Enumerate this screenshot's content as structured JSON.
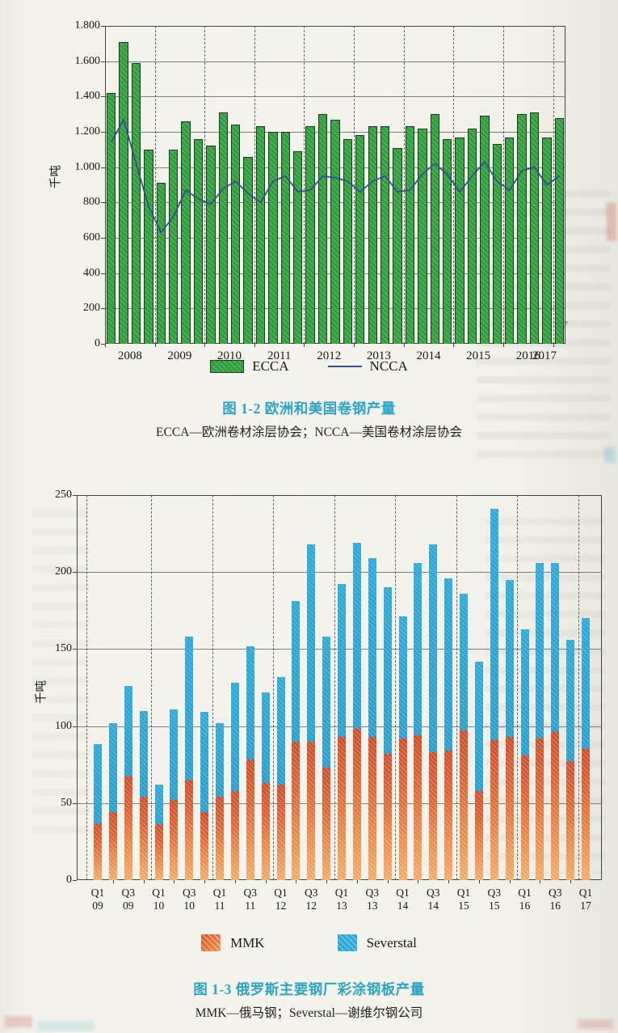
{
  "page": {
    "bleed_fragment": "7"
  },
  "figure_1_2": {
    "caption": "图 1-2  欧洲和美国卷钢产量",
    "subcaption": "ECCA—欧洲卷材涂层协会；NCCA—美国卷材涂层协会"
  },
  "figure_1_3": {
    "caption": "图 1-3  俄罗斯主要钢厂彩涂钢板产量",
    "subcaption": "MMK—俄马钢；Severstal—谢维尔钢公司"
  },
  "chart_data": [
    {
      "type": "bar",
      "title": "图 1-2 欧洲和美国卷钢产量",
      "ylabel": "千吨",
      "ylim": [
        0,
        1800
      ],
      "yticks": [
        0,
        200,
        400,
        600,
        800,
        1000,
        1200,
        1400,
        1600,
        1800
      ],
      "ytick_labels": [
        "0",
        "200",
        "400",
        "600",
        "800",
        "1.000",
        "1.200",
        "1.400",
        "1.600",
        "1.800"
      ],
      "x_unit": "quarter",
      "year_labels": [
        "2008",
        "2009",
        "2010",
        "2011",
        "2012",
        "2013",
        "2014",
        "2015",
        "2016",
        "2017"
      ],
      "bars_per_year": [
        4,
        4,
        4,
        4,
        4,
        4,
        4,
        4,
        4,
        1
      ],
      "grid": true,
      "legend_position": "bottom",
      "series": [
        {
          "name": "ECCA",
          "type": "bar",
          "color": "#3fae4b",
          "values": [
            1420,
            1710,
            1590,
            1100,
            910,
            1100,
            1260,
            1160,
            1120,
            1310,
            1240,
            1060,
            1230,
            1200,
            1200,
            1090,
            1230,
            1300,
            1270,
            1160,
            1180,
            1230,
            1230,
            1110,
            1230,
            1220,
            1300,
            1160,
            1170,
            1220,
            1290,
            1130,
            1170,
            1300,
            1310,
            1170,
            1280
          ]
        },
        {
          "name": "NCCA",
          "type": "line",
          "color": "#34508c",
          "values": [
            1140,
            1270,
            1020,
            780,
            630,
            720,
            870,
            820,
            790,
            880,
            920,
            850,
            800,
            920,
            950,
            860,
            870,
            950,
            940,
            920,
            860,
            920,
            950,
            860,
            870,
            960,
            1020,
            960,
            860,
            950,
            1030,
            920,
            870,
            980,
            1000,
            900,
            950
          ]
        }
      ]
    },
    {
      "type": "stacked-bar",
      "title": "图 1-3 俄罗斯主要钢厂彩涂钢板产量",
      "ylabel": "千吨",
      "ylim": [
        0,
        250
      ],
      "yticks": [
        0,
        50,
        100,
        150,
        200,
        250
      ],
      "ytick_labels": [
        "0",
        "50",
        "100",
        "150",
        "200",
        "250"
      ],
      "xtick_labels": [
        [
          "Q1",
          "09"
        ],
        [
          "Q3",
          "09"
        ],
        [
          "Q1",
          "10"
        ],
        [
          "Q3",
          "10"
        ],
        [
          "Q1",
          "11"
        ],
        [
          "Q3",
          "11"
        ],
        [
          "Q1",
          "12"
        ],
        [
          "Q3",
          "12"
        ],
        [
          "Q1",
          "13"
        ],
        [
          "Q3",
          "13"
        ],
        [
          "Q1",
          "14"
        ],
        [
          "Q3",
          "14"
        ],
        [
          "Q1",
          "15"
        ],
        [
          "Q3",
          "15"
        ],
        [
          "Q1",
          "16"
        ],
        [
          "Q3",
          "16"
        ],
        [
          "Q1",
          "17"
        ]
      ],
      "quarters_per_year": [
        4,
        4,
        4,
        4,
        4,
        4,
        4,
        4,
        1
      ],
      "grid": true,
      "legend_position": "bottom",
      "series": [
        {
          "name": "MMK",
          "color": "#d9592c",
          "values": [
            37,
            44,
            67,
            54,
            36,
            52,
            65,
            44,
            54,
            58,
            78,
            63,
            62,
            90,
            90,
            73,
            93,
            98,
            93,
            82,
            92,
            94,
            83,
            84,
            97,
            58,
            91,
            93,
            81,
            92,
            96,
            77,
            85
          ]
        },
        {
          "name": "Severstal",
          "color": "#29a7d6",
          "values": [
            51,
            58,
            59,
            56,
            26,
            59,
            93,
            65,
            48,
            70,
            74,
            59,
            70,
            91,
            128,
            85,
            99,
            121,
            116,
            108,
            79,
            112,
            135,
            112,
            89,
            84,
            150,
            102,
            82,
            114,
            110,
            79,
            85
          ]
        }
      ]
    }
  ]
}
